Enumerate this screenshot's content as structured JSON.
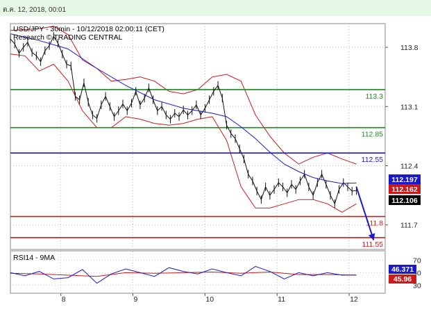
{
  "header": {
    "date": "ต.ค. 12, 2018, 00:01"
  },
  "chart_data": {
    "type": "line",
    "title": "USD/JPY - 30min - 10/12/2018 02:00:11 (CET)",
    "subtitle": "Research © TRADING CENTRAL",
    "price_axis": {
      "ticks": [
        "113.8",
        "113.1",
        "112.4",
        "111.7"
      ],
      "range": [
        111.41,
        114.08
      ]
    },
    "time_axis": {
      "labels": [
        "8",
        "9",
        "10",
        "11",
        "12"
      ]
    },
    "levels": [
      {
        "label": "113.3",
        "value": 113.3,
        "color": "#1a8a1a"
      },
      {
        "label": "112.85",
        "value": 112.85,
        "color": "#1a8a1a"
      },
      {
        "label": "112.55",
        "value": 112.55,
        "color": "#1a1acc"
      },
      {
        "label": "111.8",
        "value": 111.8,
        "color": "#cc1a1a"
      },
      {
        "label": "111.55",
        "value": 111.55,
        "color": "#cc1a1a"
      }
    ],
    "price_boxes": [
      {
        "label": "112.197",
        "value": 112.197,
        "color": "#1a1acc"
      },
      {
        "label": "112.162",
        "value": 112.162,
        "color": "#cc1a1a"
      },
      {
        "label": "112.106",
        "value": 112.106,
        "color": "#000000"
      }
    ],
    "price_series": [
      [
        0,
        113.9
      ],
      [
        0.3,
        113.84
      ],
      [
        0.6,
        113.73
      ],
      [
        0.9,
        113.8
      ],
      [
        1.2,
        113.86
      ],
      [
        1.5,
        113.74
      ],
      [
        1.8,
        113.7
      ],
      [
        2.1,
        113.63
      ],
      [
        2.4,
        113.76
      ],
      [
        2.7,
        113.82
      ],
      [
        3.0,
        113.93
      ],
      [
        3.3,
        113.85
      ],
      [
        3.6,
        113.72
      ],
      [
        3.9,
        113.6
      ],
      [
        4.2,
        113.58
      ],
      [
        4.5,
        113.22
      ],
      [
        4.8,
        113.18
      ],
      [
        5.1,
        113.38
      ],
      [
        5.4,
        113.15
      ],
      [
        5.7,
        113.0
      ],
      [
        6.0,
        112.96
      ],
      [
        6.3,
        113.12
      ],
      [
        6.6,
        113.22
      ],
      [
        6.9,
        113.1
      ],
      [
        7.2,
        112.98
      ],
      [
        7.5,
        113.05
      ],
      [
        7.8,
        113.13
      ],
      [
        8.1,
        113.05
      ],
      [
        8.4,
        113.14
      ],
      [
        8.7,
        113.28
      ],
      [
        9.0,
        113.12
      ],
      [
        9.3,
        113.2
      ],
      [
        9.6,
        113.32
      ],
      [
        9.9,
        113.18
      ],
      [
        10.2,
        113.05
      ],
      [
        10.5,
        113.1
      ],
      [
        10.8,
        113.0
      ],
      [
        11.1,
        112.95
      ],
      [
        11.4,
        113.02
      ],
      [
        11.7,
        112.98
      ],
      [
        12.0,
        113.06
      ],
      [
        12.3,
        113.0
      ],
      [
        12.6,
        113.05
      ],
      [
        12.9,
        113.12
      ],
      [
        13.2,
        113.0
      ],
      [
        13.5,
        113.08
      ],
      [
        13.8,
        113.18
      ],
      [
        14.1,
        113.28
      ],
      [
        14.4,
        113.35
      ],
      [
        14.7,
        113.2
      ],
      [
        15.0,
        112.88
      ],
      [
        15.3,
        112.78
      ],
      [
        15.6,
        112.72
      ],
      [
        15.9,
        112.6
      ],
      [
        16.2,
        112.48
      ],
      [
        16.5,
        112.3
      ],
      [
        16.8,
        112.22
      ],
      [
        17.1,
        112.1
      ],
      [
        17.4,
        112.0
      ],
      [
        17.7,
        112.15
      ],
      [
        18.0,
        112.05
      ],
      [
        18.3,
        112.12
      ],
      [
        18.6,
        112.2
      ],
      [
        18.9,
        112.15
      ],
      [
        19.2,
        112.08
      ],
      [
        19.5,
        112.18
      ],
      [
        19.8,
        112.12
      ],
      [
        20.1,
        112.22
      ],
      [
        20.4,
        112.3
      ],
      [
        20.7,
        112.15
      ],
      [
        21.0,
        112.05
      ],
      [
        21.3,
        112.2
      ],
      [
        21.6,
        112.3
      ],
      [
        21.9,
        112.18
      ],
      [
        22.2,
        112.05
      ],
      [
        22.5,
        111.95
      ],
      [
        22.8,
        112.12
      ],
      [
        23.1,
        112.2
      ],
      [
        23.4,
        112.15
      ],
      [
        23.7,
        112.1
      ],
      [
        24.0,
        112.106
      ]
    ],
    "ma_series": [
      [
        0,
        113.96
      ],
      [
        2,
        113.88
      ],
      [
        4,
        113.78
      ],
      [
        6,
        113.55
      ],
      [
        8,
        113.35
      ],
      [
        10,
        113.18
      ],
      [
        12,
        113.08
      ],
      [
        14,
        113.02
      ],
      [
        15,
        112.98
      ],
      [
        16,
        112.86
      ],
      [
        17,
        112.72
      ],
      [
        18,
        112.56
      ],
      [
        19,
        112.42
      ],
      [
        20,
        112.33
      ],
      [
        21,
        112.26
      ],
      [
        22,
        112.22
      ],
      [
        23,
        112.19
      ],
      [
        24,
        112.197
      ]
    ],
    "bb_upper": [
      [
        0,
        114.0
      ],
      [
        2,
        114.02
      ],
      [
        3,
        114.05
      ],
      [
        4,
        113.95
      ],
      [
        5,
        113.65
      ],
      [
        6,
        113.55
      ],
      [
        7,
        113.4
      ],
      [
        8,
        113.42
      ],
      [
        9,
        113.45
      ],
      [
        10,
        113.4
      ],
      [
        11,
        113.28
      ],
      [
        12,
        113.25
      ],
      [
        13,
        113.3
      ],
      [
        14,
        113.45
      ],
      [
        15,
        113.48
      ],
      [
        16,
        113.4
      ],
      [
        17,
        113.0
      ],
      [
        18,
        112.75
      ],
      [
        19,
        112.55
      ],
      [
        20,
        112.42
      ],
      [
        21,
        112.5
      ],
      [
        22,
        112.55
      ],
      [
        23,
        112.48
      ],
      [
        24,
        112.42
      ]
    ],
    "bb_lower": [
      [
        0,
        113.72
      ],
      [
        1,
        113.7
      ],
      [
        2,
        113.52
      ],
      [
        3,
        113.6
      ],
      [
        4,
        113.4
      ],
      [
        5,
        113.05
      ],
      [
        6,
        112.85
      ],
      [
        7,
        112.85
      ],
      [
        8,
        112.98
      ],
      [
        9,
        112.95
      ],
      [
        10,
        112.9
      ],
      [
        11,
        112.88
      ],
      [
        12,
        112.9
      ],
      [
        13,
        112.95
      ],
      [
        14,
        112.98
      ],
      [
        15,
        112.7
      ],
      [
        16,
        112.15
      ],
      [
        17,
        111.9
      ],
      [
        18,
        111.9
      ],
      [
        19,
        111.95
      ],
      [
        20,
        112.0
      ],
      [
        21,
        112.0
      ],
      [
        22,
        111.95
      ],
      [
        23,
        111.85
      ],
      [
        24,
        111.95
      ]
    ],
    "forecast_arrow": {
      "from": [
        24,
        112.15
      ],
      "to": [
        25.2,
        111.52
      ]
    },
    "rsi": {
      "title": "RSI14 - 9MA",
      "ticks": [
        "70",
        "50",
        "30"
      ],
      "range": [
        17,
        85
      ],
      "boxes": [
        {
          "label": "46.371",
          "value": 46.371,
          "color": "#1a1acc"
        },
        {
          "label": "45.96",
          "value": 45.96,
          "color": "#cc1a1a"
        }
      ],
      "rsi_series": [
        [
          0,
          50
        ],
        [
          1,
          45
        ],
        [
          2,
          52
        ],
        [
          3,
          40
        ],
        [
          4,
          42
        ],
        [
          5,
          55
        ],
        [
          6,
          33
        ],
        [
          7,
          48
        ],
        [
          8,
          56
        ],
        [
          9,
          50
        ],
        [
          10,
          44
        ],
        [
          11,
          58
        ],
        [
          12,
          52
        ],
        [
          13,
          48
        ],
        [
          14,
          56
        ],
        [
          15,
          50
        ],
        [
          16,
          45
        ],
        [
          17,
          60
        ],
        [
          18,
          52
        ],
        [
          19,
          40
        ],
        [
          20,
          50
        ],
        [
          21,
          45
        ],
        [
          22,
          50
        ],
        [
          23,
          46
        ],
        [
          24,
          46.371
        ]
      ],
      "ma_series": [
        [
          0,
          49
        ],
        [
          2,
          48
        ],
        [
          4,
          46
        ],
        [
          6,
          44
        ],
        [
          8,
          50
        ],
        [
          10,
          49
        ],
        [
          12,
          50
        ],
        [
          14,
          51
        ],
        [
          16,
          49
        ],
        [
          18,
          51
        ],
        [
          20,
          47
        ],
        [
          22,
          47
        ],
        [
          24,
          45.96
        ]
      ]
    }
  }
}
